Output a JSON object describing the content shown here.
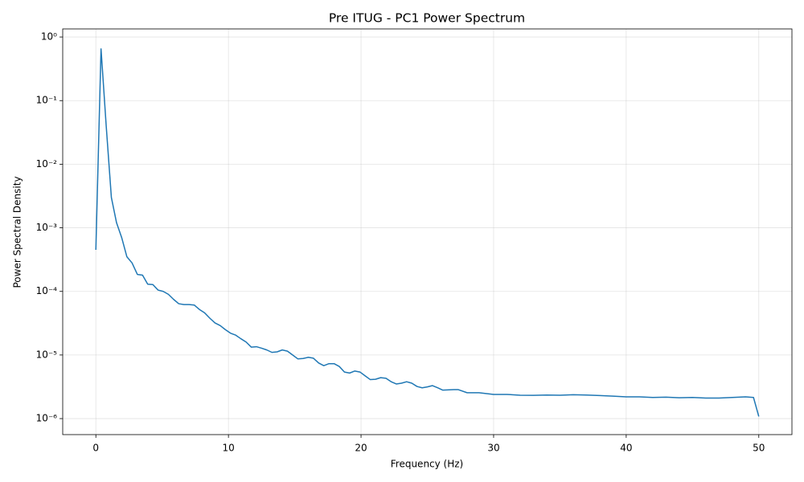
{
  "chart_data": {
    "type": "line",
    "title": "Pre ITUG - PC1 Power Spectrum",
    "x_label": "Frequency (Hz)",
    "y_label": "Power Spectral Density",
    "log_y": true,
    "grid": true,
    "xlim": [
      -2.5,
      52.5
    ],
    "xticks": [
      0,
      10,
      20,
      30,
      40,
      50
    ],
    "ylim": [
      5.6e-07,
      1.34
    ],
    "yticks": [
      {
        "value": 1e-06,
        "label": "10⁻⁶"
      },
      {
        "value": 1e-05,
        "label": "10⁻⁵"
      },
      {
        "value": 0.0001,
        "label": "10⁻⁴"
      },
      {
        "value": 0.001,
        "label": "10⁻³"
      },
      {
        "value": 0.01,
        "label": "10⁻²"
      },
      {
        "value": 0.1,
        "label": "10⁻¹"
      },
      {
        "value": 1,
        "label": "10⁰"
      }
    ],
    "series": [
      {
        "color": "#1f77b4",
        "x": [
          0,
          0.39,
          0.78,
          1.17,
          1.56,
          1.95,
          2.34,
          2.73,
          3.13,
          3.52,
          3.91,
          4.3,
          4.69,
          5.08,
          5.47,
          5.86,
          6.25,
          6.64,
          7.03,
          7.42,
          7.81,
          8.2,
          8.59,
          8.98,
          9.38,
          9.77,
          10.16,
          10.55,
          10.94,
          11.33,
          11.72,
          12.11,
          12.5,
          12.89,
          13.28,
          13.67,
          14.06,
          14.45,
          14.84,
          15.23,
          15.63,
          16.02,
          16.41,
          16.8,
          17.19,
          17.58,
          17.97,
          18.36,
          18.75,
          19.14,
          19.53,
          19.92,
          20.31,
          20.7,
          21.09,
          21.48,
          21.88,
          22.27,
          22.66,
          23.05,
          23.44,
          23.83,
          24.22,
          24.61,
          25.0,
          25.39,
          25.78,
          26.17,
          27.0,
          27.34,
          28.0,
          28.9,
          30.0,
          31.0,
          32.0,
          33.0,
          34.0,
          35.0,
          36.0,
          37.0,
          38.0,
          39.0,
          40.0,
          41.0,
          42.0,
          43.0,
          44.0,
          45.0,
          46.0,
          47.0,
          48.0,
          49.0,
          49.6,
          50.0
        ],
        "values": [
          0.00045,
          0.65,
          0.04,
          0.003,
          0.0012,
          0.0007,
          0.00035,
          0.00028,
          0.000185,
          0.00018,
          0.00013,
          0.000128,
          0.000105,
          0.0001,
          9e-05,
          7.5e-05,
          6.4e-05,
          6.2e-05,
          6.2e-05,
          6.1e-05,
          5.2e-05,
          4.6e-05,
          3.8e-05,
          3.2e-05,
          2.9e-05,
          2.5e-05,
          2.2e-05,
          2.05e-05,
          1.8e-05,
          1.6e-05,
          1.33e-05,
          1.35e-05,
          1.28e-05,
          1.2e-05,
          1.1e-05,
          1.12e-05,
          1.2e-05,
          1.15e-05,
          1e-05,
          8.7e-06,
          8.8e-06,
          9.2e-06,
          8.9e-06,
          7.5e-06,
          6.8e-06,
          7.3e-06,
          7.3e-06,
          6.6e-06,
          5.4e-06,
          5.2e-06,
          5.6e-06,
          5.4e-06,
          4.7e-06,
          4.1e-06,
          4.15e-06,
          4.4e-06,
          4.3e-06,
          3.8e-06,
          3.5e-06,
          3.6e-06,
          3.8e-06,
          3.6e-06,
          3.2e-06,
          3.05e-06,
          3.15e-06,
          3.3e-06,
          3.05e-06,
          2.8e-06,
          2.85e-06,
          2.85e-06,
          2.55e-06,
          2.55e-06,
          2.4e-06,
          2.4e-06,
          2.33e-06,
          2.32e-06,
          2.35e-06,
          2.33e-06,
          2.37e-06,
          2.35e-06,
          2.3e-06,
          2.25e-06,
          2.2e-06,
          2.2e-06,
          2.15e-06,
          2.17e-06,
          2.13e-06,
          2.15e-06,
          2.1e-06,
          2.1e-06,
          2.15e-06,
          2.2e-06,
          2.15e-06,
          1.08e-06
        ]
      }
    ]
  }
}
